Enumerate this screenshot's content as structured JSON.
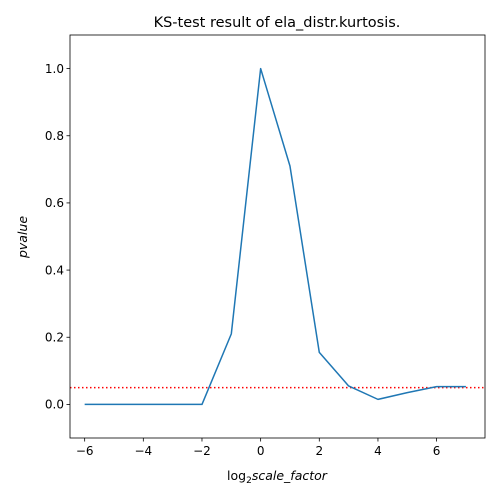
{
  "chart_data": {
    "type": "line",
    "title": "KS-test result of ela_distr.kurtosis.",
    "xlabel_prefix": "log",
    "xlabel_sub": "2",
    "xlabel_main": "scale_factor",
    "ylabel": "pvalue",
    "xlim": [
      -6.5,
      7.65
    ],
    "ylim": [
      -0.1,
      1.1
    ],
    "xticks": [
      -6,
      -4,
      -2,
      0,
      2,
      4,
      6
    ],
    "xtick_labels": [
      "−6",
      "−4",
      "−2",
      "0",
      "2",
      "4",
      "6"
    ],
    "yticks": [
      0.0,
      0.2,
      0.4,
      0.6,
      0.8,
      1.0
    ],
    "ytick_labels": [
      "0.0",
      "0.2",
      "0.4",
      "0.6",
      "0.8",
      "1.0"
    ],
    "grid": false,
    "series": [
      {
        "color": "#1f77b4",
        "x": [
          -6,
          -5,
          -4,
          -3,
          -2,
          -1,
          0,
          1,
          2,
          3,
          4,
          5,
          6,
          7
        ],
        "y": [
          0.0,
          0.0,
          0.0,
          0.0,
          0.0,
          0.21,
          1.0,
          0.71,
          0.155,
          0.055,
          0.015,
          0.035,
          0.053,
          0.053
        ]
      }
    ],
    "threshold": {
      "y": 0.05,
      "color": "#ff0000",
      "style": "dotted"
    }
  }
}
